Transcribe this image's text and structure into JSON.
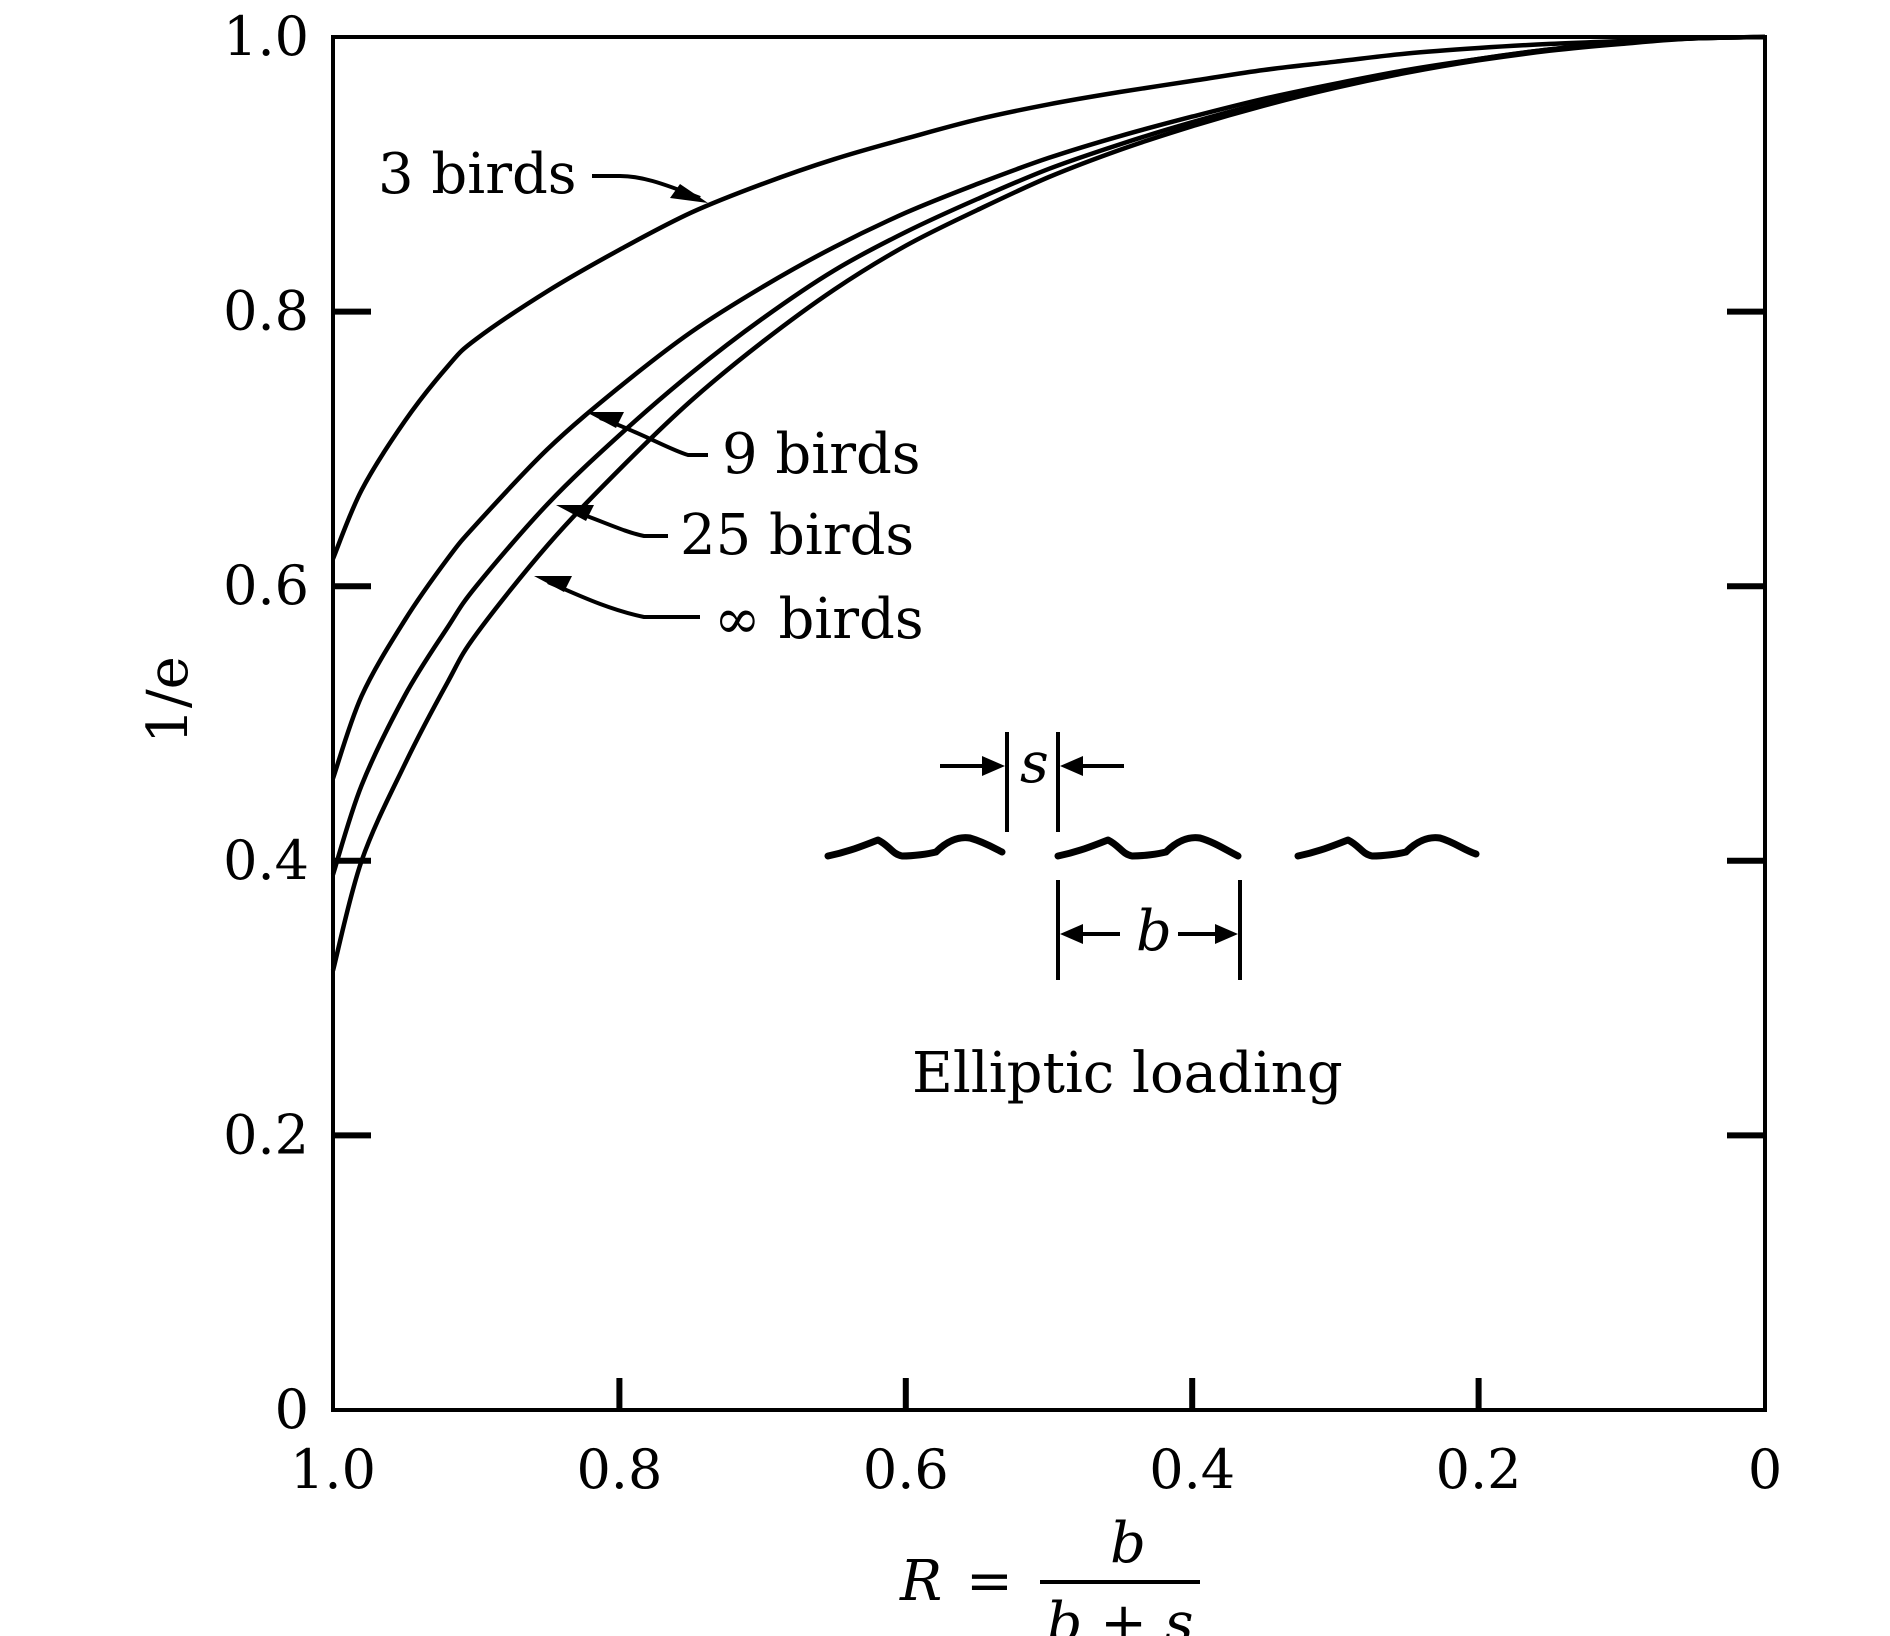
{
  "chart_data": {
    "type": "line",
    "title": "",
    "xlabel": "R = b / (b + s)",
    "xlabel_parts": {
      "lhs": "R",
      "eq": "=",
      "numerator": "b",
      "denominator": "b + s"
    },
    "ylabel": "1/e",
    "xlim": [
      1.0,
      0
    ],
    "ylim": [
      0,
      1.0
    ],
    "x_reversed": true,
    "grid": false,
    "legend": "none",
    "x_ticks": [
      "1.0",
      "0.8",
      "0.6",
      "0.4",
      "0.2",
      "0"
    ],
    "x_tick_values": [
      1.0,
      0.8,
      0.6,
      0.4,
      0.2,
      0
    ],
    "y_ticks": [
      "0",
      "0.2",
      "0.4",
      "0.6",
      "0.8",
      "1.0"
    ],
    "y_tick_values": [
      0,
      0.2,
      0.4,
      0.6,
      0.8,
      1.0
    ],
    "x": [
      1.0,
      0.98,
      0.95,
      0.92,
      0.9,
      0.85,
      0.8,
      0.75,
      0.7,
      0.65,
      0.6,
      0.55,
      0.5,
      0.45,
      0.4,
      0.35,
      0.3,
      0.25,
      0.2,
      0.15,
      0.1,
      0.05,
      0.0
    ],
    "series": [
      {
        "name": "3 birds",
        "values": [
          0.62,
          0.67,
          0.72,
          0.76,
          0.78,
          0.815,
          0.845,
          0.872,
          0.893,
          0.911,
          0.926,
          0.94,
          0.951,
          0.96,
          0.968,
          0.976,
          0.982,
          0.988,
          0.992,
          0.995,
          0.997,
          0.999,
          1.0
        ]
      },
      {
        "name": "9 birds",
        "values": [
          0.46,
          0.52,
          0.575,
          0.62,
          0.645,
          0.7,
          0.745,
          0.785,
          0.818,
          0.847,
          0.872,
          0.893,
          0.912,
          0.928,
          0.942,
          0.955,
          0.966,
          0.976,
          0.984,
          0.991,
          0.996,
          0.999,
          1.0
        ]
      },
      {
        "name": "25 birds",
        "values": [
          0.39,
          0.455,
          0.52,
          0.57,
          0.6,
          0.66,
          0.71,
          0.755,
          0.795,
          0.83,
          0.858,
          0.882,
          0.904,
          0.922,
          0.938,
          0.952,
          0.964,
          0.975,
          0.984,
          0.991,
          0.996,
          0.999,
          1.0
        ]
      },
      {
        "name": "∞ birds",
        "values": [
          0.32,
          0.4,
          0.47,
          0.53,
          0.565,
          0.63,
          0.685,
          0.735,
          0.778,
          0.816,
          0.848,
          0.874,
          0.898,
          0.918,
          0.935,
          0.95,
          0.963,
          0.974,
          0.983,
          0.99,
          0.995,
          0.999,
          1.0
        ]
      }
    ],
    "annotations": {
      "spacing_label": "s",
      "span_label": "b",
      "loading_label": "Elliptic loading"
    }
  }
}
